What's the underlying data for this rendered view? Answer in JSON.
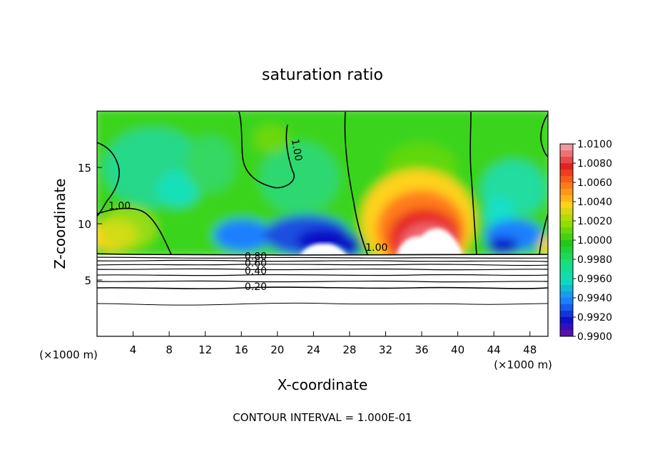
{
  "chart_data": {
    "type": "heatmap",
    "title": "saturation ratio",
    "xlabel": "X-coordinate",
    "ylabel": "Z-coordinate",
    "x_unit_left": "(×1000 m)",
    "x_unit_right": "(×1000 m)",
    "xlim": [
      0,
      50
    ],
    "ylim": [
      0,
      20
    ],
    "xticks": [
      4,
      8,
      12,
      16,
      20,
      24,
      28,
      32,
      36,
      40,
      44,
      48
    ],
    "yticks": [
      5,
      10,
      15
    ],
    "footer": "CONTOUR INTERVAL = 1.000E-01",
    "colorbar": {
      "levels": [
        "1.0100",
        "1.0080",
        "1.0060",
        "1.0040",
        "1.0020",
        "1.0000",
        "0.9980",
        "0.9960",
        "0.9940",
        "0.9920",
        "0.9900"
      ],
      "range": [
        0.99,
        1.01
      ],
      "colors": [
        "#f09aa0",
        "#e62020",
        "#ff7a1a",
        "#ffd21a",
        "#8be000",
        "#22c81a",
        "#18e07a",
        "#10d8c0",
        "#1a7fff",
        "#1010c8",
        "#7a10a0"
      ]
    },
    "contour_labels": [
      {
        "text": "1.00",
        "x": 2.5,
        "y": 11.3
      },
      {
        "text": "1.00",
        "x": 21.8,
        "y": 16.5
      },
      {
        "text": "1.00",
        "x": 31.0,
        "y": 7.6
      },
      {
        "text": "0.80",
        "x": 17.6,
        "y": 6.8
      },
      {
        "text": "0.60",
        "x": 17.6,
        "y": 6.2
      },
      {
        "text": "0.40",
        "x": 17.6,
        "y": 5.5
      },
      {
        "text": "0.20",
        "x": 17.6,
        "y": 4.1
      }
    ],
    "surface_height": 7.3
  }
}
